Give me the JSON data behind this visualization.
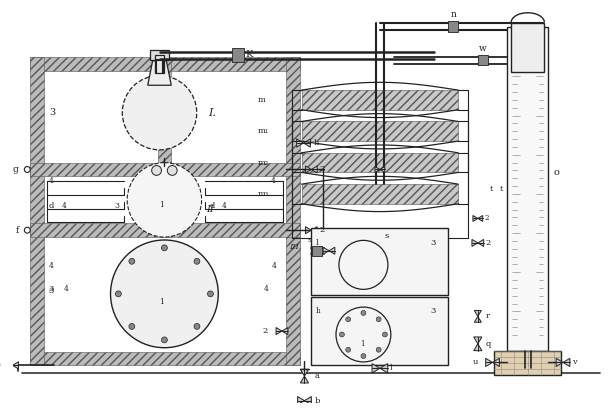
{
  "bg_color": "#ffffff",
  "lc": "#222222",
  "lw_main": 1.0,
  "lw_thick": 1.5,
  "lw_thin": 0.6,
  "figsize": [
    6.12,
    4.08
  ],
  "dpi": 100,
  "xlim": [
    0,
    612
  ],
  "ylim": [
    0,
    408
  ]
}
